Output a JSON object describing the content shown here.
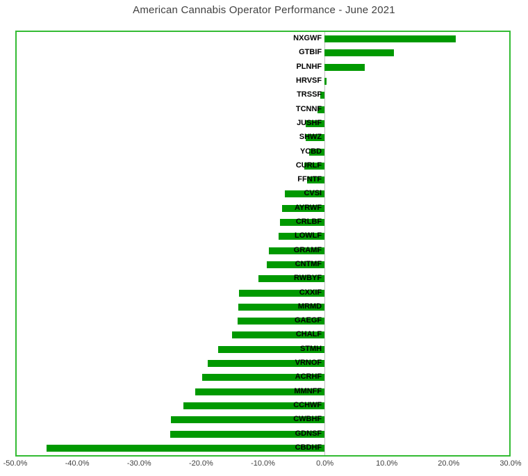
{
  "title": "American Cannabis Operator Performance - June 2021",
  "chart_data": {
    "type": "bar",
    "orientation": "horizontal",
    "title": "American Cannabis Operator Performance - June 2021",
    "xlabel": "",
    "ylabel": "",
    "xlim": [
      -50,
      30
    ],
    "x_tick_labels": [
      "-50.0%",
      "-40.0%",
      "-30.0%",
      "-20.0%",
      "-10.0%",
      "0.0%",
      "10.0%",
      "20.0%",
      "30.0%"
    ],
    "x_tick_values": [
      -50,
      -40,
      -30,
      -20,
      -10,
      0,
      10,
      20,
      30
    ],
    "legend": "none",
    "grid": "zero-axis-only",
    "categories": [
      "NXGWF",
      "GTBIF",
      "PLNHF",
      "HRVSF",
      "TRSSF",
      "TCNNF",
      "JUSHF",
      "SHWZ",
      "YCBD",
      "CURLF",
      "FFNTF",
      "CVSI",
      "AYRWF",
      "CRLBF",
      "LOWLF",
      "GRAMF",
      "CNTMF",
      "RWBYF",
      "CXXIF",
      "MRMD",
      "GAEGF",
      "CHALF",
      "STMH",
      "VRNOF",
      "ACRHF",
      "MMNFF",
      "CCHWF",
      "CWBHF",
      "GDNSF",
      "CBDHF"
    ],
    "values": [
      21.3,
      11.3,
      6.5,
      0.3,
      -0.7,
      -1.1,
      -3.1,
      -3.1,
      -2.5,
      -3.3,
      -2.8,
      -6.5,
      -6.9,
      -7.2,
      -7.5,
      -9.0,
      -9.4,
      -10.7,
      -13.9,
      -14.0,
      -14.1,
      -15.0,
      -17.3,
      -19.0,
      -19.9,
      -21.0,
      -22.9,
      -24.9,
      -25.1,
      -45.2
    ],
    "unit": "percent",
    "bar_color": "#009900",
    "plot_border_color": "#33bb33",
    "zero_line_color": "#bfbfbf",
    "title_color": "#404040",
    "tick_label_color": "#404040",
    "category_label_color": "#000000"
  }
}
